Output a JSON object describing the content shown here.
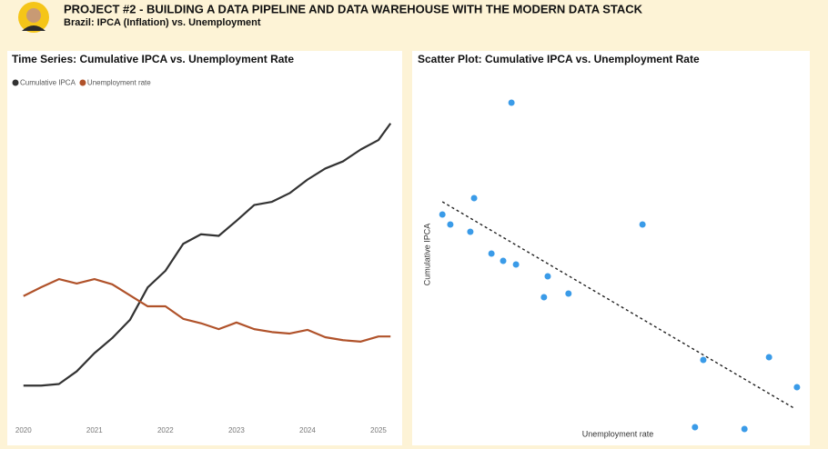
{
  "header": {
    "title": "PROJECT #2 - BUILDING A DATA PIPELINE AND DATA WAREHOUSE WITH THE MODERN DATA STACK",
    "subtitle": "Brazil: IPCA (Inflation) vs. Unemployment"
  },
  "chart_data": [
    {
      "type": "line",
      "title": "Time Series: Cumulative IPCA vs. Unemployment Rate",
      "x": [
        2020,
        2020.25,
        2020.5,
        2020.75,
        2021,
        2021.25,
        2021.5,
        2021.75,
        2022,
        2022.25,
        2022.5,
        2022.75,
        2023,
        2023.25,
        2023.5,
        2023.75,
        2024,
        2024.25,
        2024.5,
        2024.75,
        2025,
        2025.17
      ],
      "series": [
        {
          "name": "Cumulative IPCA",
          "color": "#333333",
          "values": [
            0,
            0,
            0.2,
            1.8,
            4.1,
            6,
            8.3,
            12.4,
            14.5,
            17.9,
            19.1,
            18.9,
            20.8,
            22.8,
            23.2,
            24.3,
            26,
            27.4,
            28.3,
            29.8,
            31,
            33.1
          ]
        },
        {
          "name": "Unemployment rate",
          "color": "#b0522a",
          "axis": "y2",
          "values": [
            12.4,
            13.6,
            14.7,
            14.1,
            14.7,
            14,
            12.5,
            11,
            11,
            9.3,
            8.7,
            7.9,
            8.8,
            7.9,
            7.5,
            7.3,
            7.8,
            6.8,
            6.4,
            6.2,
            6.9,
            6.9
          ]
        }
      ],
      "xlim": [
        2019.99,
        2025.18
      ],
      "xticks": [
        2020,
        2021,
        2022,
        2023,
        2024,
        2025
      ],
      "ylim": [
        -4.1,
        37.2
      ],
      "y2lim": [
        -4.2,
        40.3
      ],
      "legend": "top-left"
    },
    {
      "type": "scatter",
      "title": "Scatter Plot: Cumulative IPCA vs. Unemployment Rate",
      "x_label": "Unemployment rate",
      "y_label": "Cumulative IPCA",
      "color": "#3a9be8",
      "x": [
        7.72,
        5.89,
        6.1,
        6.73,
        6.63,
        7.19,
        7.5,
        7.84,
        8.68,
        8.58,
        9.23,
        11.19,
        12.8,
        14.54,
        15.28,
        12.58,
        13.89
      ],
      "values": [
        34.2,
        21.9,
        20.8,
        23.7,
        20.0,
        17.6,
        16.8,
        16.4,
        15.1,
        12.8,
        13.2,
        20.8,
        5.9,
        6.2,
        2.9,
        -1.5,
        -1.7
      ],
      "trendline": {
        "x": [
          5.89,
          15.2
        ],
        "values": [
          23.3,
          0.6
        ]
      },
      "xlim": [
        5.5,
        15.5
      ],
      "ylim": [
        -2,
        36
      ]
    }
  ]
}
